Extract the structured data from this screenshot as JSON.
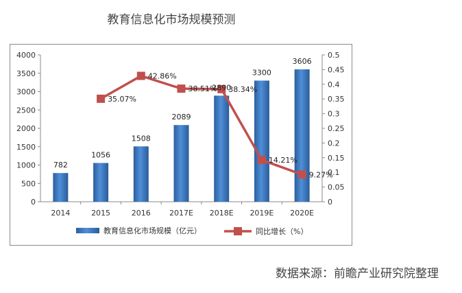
{
  "title": "教育信息化市场规模预测",
  "source": "数据来源：前瞻产业研究院整理",
  "chart_data": {
    "type": "bar+line",
    "categories": [
      "2014",
      "2015",
      "2016",
      "2017E",
      "2018E",
      "2019E",
      "2020E"
    ],
    "series": [
      {
        "name": "教育信息化市场规模（亿元）",
        "type": "bar",
        "axis": "left",
        "color": "#3a78c4",
        "values": [
          782,
          1056,
          1508,
          2089,
          2890,
          3300,
          3606
        ],
        "labels": [
          "782",
          "1056",
          "1508",
          "2089",
          "2890",
          "3300",
          "3606"
        ]
      },
      {
        "name": "同比增长（%）",
        "type": "line",
        "axis": "right",
        "color": "#c0504d",
        "values": [
          null,
          0.3507,
          0.4286,
          0.3851,
          0.3834,
          0.1421,
          0.0927
        ],
        "labels": [
          "",
          "35.07%",
          "42.86%",
          "38.51%",
          "38.34%",
          "14.21%",
          "9.27%"
        ]
      }
    ],
    "y_left": {
      "min": 0,
      "max": 4000,
      "step": 500,
      "ticks": [
        "0",
        "500",
        "1000",
        "1500",
        "2000",
        "2500",
        "3000",
        "3500",
        "4000"
      ]
    },
    "y_right": {
      "min": 0,
      "max": 0.5,
      "step": 0.05,
      "ticks": [
        "0",
        "0.05",
        "0.1",
        "0.15",
        "0.2",
        "0.25",
        "0.3",
        "0.35",
        "0.4",
        "0.45",
        "0.5"
      ]
    },
    "grid": false,
    "legend": "bottom"
  }
}
